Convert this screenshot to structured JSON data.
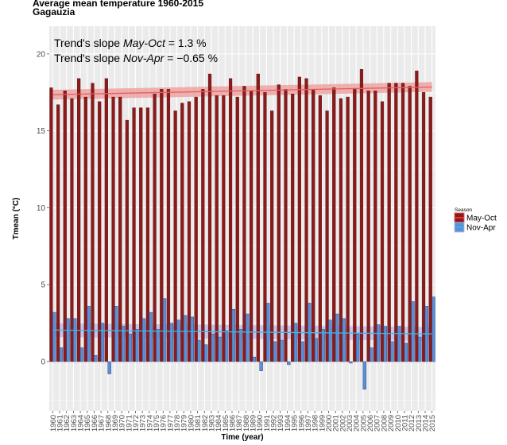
{
  "chart_data": {
    "type": "bar",
    "title": "Average mean temperature 1960-2015",
    "subtitle": "Gagauzia",
    "xlabel": "Time (year)",
    "ylabel": "Tmean (°C)",
    "ylim": [
      -3.2,
      21.8
    ],
    "yticks": [
      0,
      5,
      10,
      15,
      20
    ],
    "legend_title": "Season",
    "legend_position": "right",
    "grid": true,
    "years": [
      "1960",
      "1961",
      "1962",
      "1963",
      "1964",
      "1965",
      "1966",
      "1967",
      "1968",
      "1969",
      "1970",
      "1971",
      "1972",
      "1973",
      "1974",
      "1975",
      "1976",
      "1977",
      "1978",
      "1979",
      "1980",
      "1981",
      "1982",
      "1983",
      "1984",
      "1985",
      "1986",
      "1987",
      "1988",
      "1989",
      "1990",
      "1991",
      "1992",
      "1993",
      "1994",
      "1995",
      "1996",
      "1997",
      "1998",
      "1999",
      "2000",
      "2001",
      "2002",
      "2003",
      "2004",
      "2005",
      "2006",
      "2007",
      "2008",
      "2009",
      "2010",
      "2011",
      "2012",
      "2013",
      "2014",
      "2015"
    ],
    "series": [
      {
        "name": "May-Oct",
        "color": "#8b1a1a",
        "values": [
          17.8,
          16.7,
          17.6,
          17.1,
          18.4,
          17.2,
          18.1,
          16.9,
          18.4,
          17.2,
          17.2,
          15.7,
          16.5,
          16.5,
          16.5,
          17.4,
          17.7,
          17.7,
          16.3,
          16.8,
          16.9,
          17.2,
          17.7,
          18.7,
          17.3,
          17.3,
          18.4,
          17.2,
          17.9,
          17.6,
          18.7,
          17.5,
          16.3,
          18.0,
          17.7,
          17.4,
          18.5,
          18.4,
          17.7,
          17.3,
          16.3,
          17.8,
          17.1,
          17.2,
          17.7,
          19.0,
          17.6,
          17.6,
          16.9,
          18.1,
          18.1,
          18.1,
          17.9,
          18.9,
          17.5,
          17.2
        ]
      },
      {
        "name": "Nov-Apr",
        "color": "#5b8fd6",
        "values": [
          3.2,
          0.9,
          2.8,
          2.8,
          0.9,
          3.6,
          0.4,
          2.5,
          -0.8,
          3.6,
          2.3,
          1.8,
          2.1,
          2.8,
          3.2,
          2.1,
          4.1,
          2.5,
          2.7,
          3.0,
          2.9,
          1.4,
          1.1,
          1.8,
          1.6,
          2.0,
          3.4,
          2.1,
          3.1,
          0.3,
          -0.6,
          3.8,
          1.3,
          1.4,
          -0.2,
          2.5,
          1.3,
          3.8,
          1.5,
          2.1,
          2.7,
          3.1,
          2.8,
          -0.1,
          1.8,
          -1.8,
          0.9,
          2.4,
          2.3,
          1.3,
          2.3,
          1.2,
          3.9,
          1.6,
          3.6,
          4.2
        ]
      }
    ],
    "trend_lines": [
      {
        "series": "May-Oct",
        "start": 17.35,
        "end": 17.85,
        "color": "#e06060",
        "band_color": "#ef9a9a"
      },
      {
        "series": "Nov-Apr",
        "start": 2.05,
        "end": 1.8,
        "color": "#35b9e6",
        "band_color": "#b8b8ea"
      }
    ],
    "annotations": [
      {
        "prefix": "Trend's slope ",
        "season": "May-Oct",
        "suffix": " = 1.3 %"
      },
      {
        "prefix": "Trend's slope ",
        "season": "Nov-Apr",
        "suffix": " = −0.65 %"
      }
    ]
  }
}
